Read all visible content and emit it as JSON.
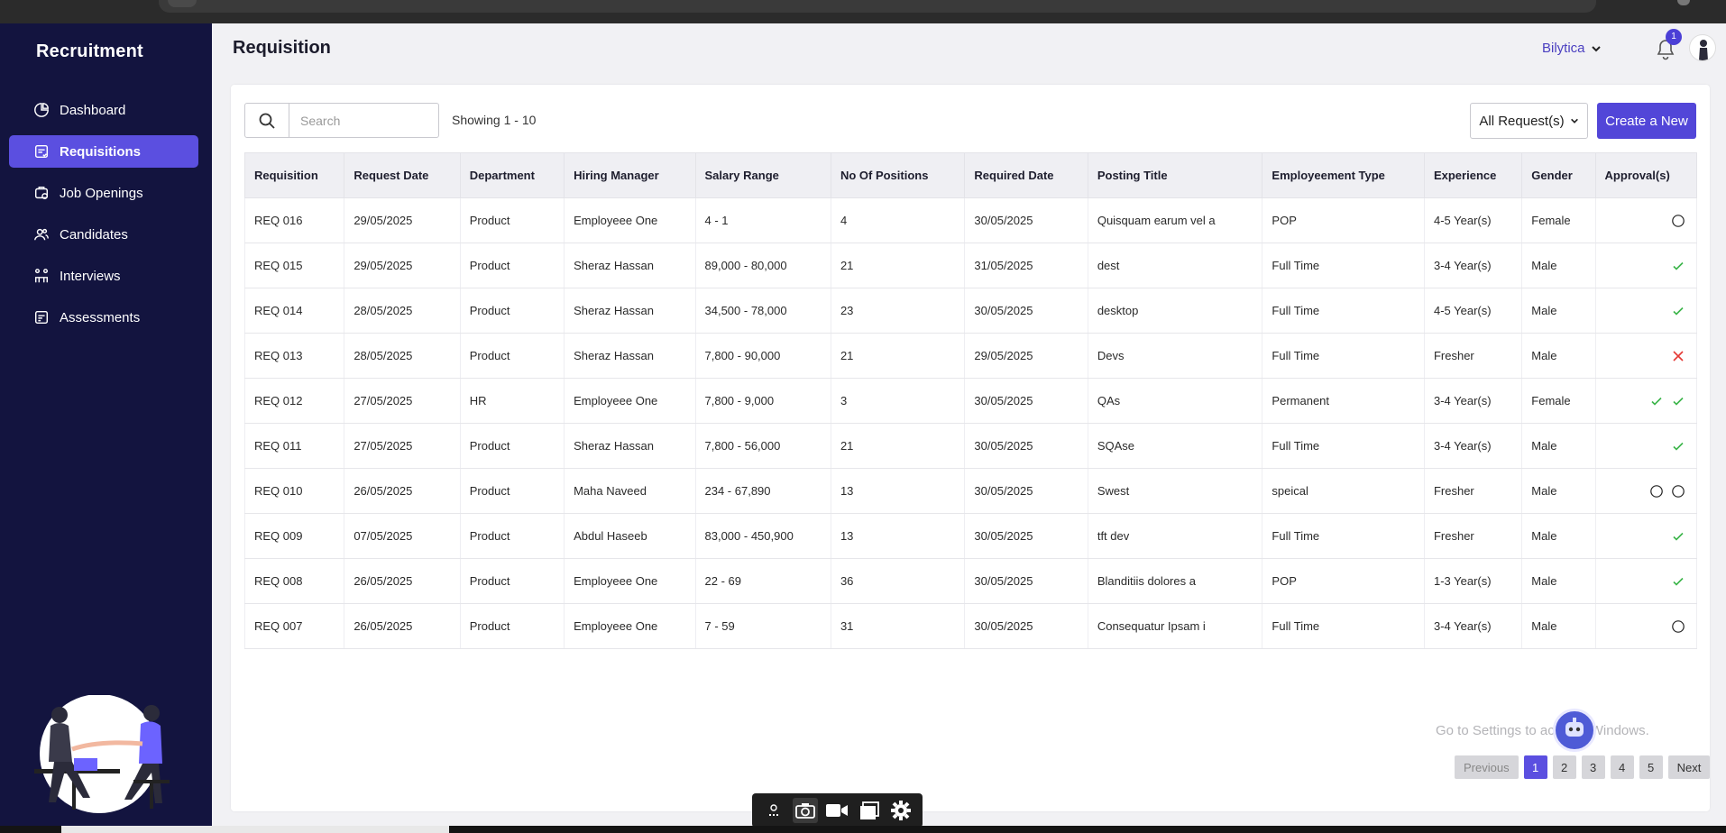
{
  "app": {
    "brand": "Recruitment",
    "page_title": "Requisition"
  },
  "sidebar": {
    "items": [
      {
        "label": "Dashboard",
        "icon": "dashboard-icon",
        "active": false
      },
      {
        "label": "Requisitions",
        "icon": "requisitions-icon",
        "active": true
      },
      {
        "label": "Job Openings",
        "icon": "job-openings-icon",
        "active": false
      },
      {
        "label": "Candidates",
        "icon": "candidates-icon",
        "active": false
      },
      {
        "label": "Interviews",
        "icon": "interviews-icon",
        "active": false
      },
      {
        "label": "Assessments",
        "icon": "assessments-icon",
        "active": false
      }
    ]
  },
  "header": {
    "org_name": "Bilytica",
    "notification_count": "1"
  },
  "toolbar": {
    "search_placeholder": "Search",
    "showing": "Showing 1 - 10",
    "filter_value": "All Request(s)",
    "create_label": "Create a New"
  },
  "table": {
    "columns": [
      "Requisition",
      "Request Date",
      "Department",
      "Hiring Manager",
      "Salary Range",
      "No Of Positions",
      "Required Date",
      "Posting Title",
      "Employeement Type",
      "Experience",
      "Gender",
      "Approval(s)"
    ],
    "rows": [
      {
        "cells": [
          "REQ 016",
          "29/05/2025",
          "Product",
          "Employeee One",
          "4 - 1",
          "4",
          "30/05/2025",
          "Quisquam earum vel a",
          "POP",
          "4-5 Year(s)",
          "Female"
        ],
        "approvals": [
          "pending"
        ]
      },
      {
        "cells": [
          "REQ 015",
          "29/05/2025",
          "Product",
          "Sheraz Hassan",
          "89,000 - 80,000",
          "21",
          "31/05/2025",
          "dest",
          "Full Time",
          "3-4 Year(s)",
          "Male"
        ],
        "approvals": [
          "approved"
        ]
      },
      {
        "cells": [
          "REQ 014",
          "28/05/2025",
          "Product",
          "Sheraz Hassan",
          "34,500 - 78,000",
          "23",
          "30/05/2025",
          "desktop",
          "Full Time",
          "4-5 Year(s)",
          "Male"
        ],
        "approvals": [
          "approved"
        ]
      },
      {
        "cells": [
          "REQ 013",
          "28/05/2025",
          "Product",
          "Sheraz Hassan",
          "7,800 - 90,000",
          "21",
          "29/05/2025",
          "Devs",
          "Full Time",
          "Fresher",
          "Male"
        ],
        "approvals": [
          "rejected"
        ]
      },
      {
        "cells": [
          "REQ 012",
          "27/05/2025",
          "HR",
          "Employeee One",
          "7,800 - 9,000",
          "3",
          "30/05/2025",
          "QAs",
          "Permanent",
          "3-4 Year(s)",
          "Female"
        ],
        "approvals": [
          "approved",
          "approved"
        ]
      },
      {
        "cells": [
          "REQ 011",
          "27/05/2025",
          "Product",
          "Sheraz Hassan",
          "7,800 - 56,000",
          "21",
          "30/05/2025",
          "SQAse",
          "Full Time",
          "3-4 Year(s)",
          "Male"
        ],
        "approvals": [
          "approved"
        ]
      },
      {
        "cells": [
          "REQ 010",
          "26/05/2025",
          "Product",
          "Maha Naveed",
          "234 - 67,890",
          "13",
          "30/05/2025",
          "Swest",
          "speical",
          "Fresher",
          "Male"
        ],
        "approvals": [
          "pending",
          "pending"
        ]
      },
      {
        "cells": [
          "REQ 009",
          "07/05/2025",
          "Product",
          "Abdul Haseeb",
          "83,000 - 450,900",
          "13",
          "30/05/2025",
          "tft dev",
          "Full Time",
          "Fresher",
          "Male"
        ],
        "approvals": [
          "approved"
        ]
      },
      {
        "cells": [
          "REQ 008",
          "26/05/2025",
          "Product",
          "Employeee One",
          "22 - 69",
          "36",
          "30/05/2025",
          "Blanditiis dolores a",
          "POP",
          "1-3 Year(s)",
          "Male"
        ],
        "approvals": [
          "approved"
        ]
      },
      {
        "cells": [
          "REQ 007",
          "26/05/2025",
          "Product",
          "Employeee One",
          "7 - 59",
          "31",
          "30/05/2025",
          "Consequatur Ipsam i",
          "Full Time",
          "3-4 Year(s)",
          "Male"
        ],
        "approvals": [
          "pending"
        ]
      }
    ]
  },
  "pagination": {
    "previous": "Previous",
    "pages": [
      "1",
      "2",
      "3",
      "4",
      "5"
    ],
    "current": "1",
    "next": "Next"
  },
  "watermark": "Go to Settings to activate Windows.",
  "colors": {
    "sidebar_bg": "#13143f",
    "accent": "#5246d8",
    "approved": "#3bb54a",
    "rejected": "#e53935"
  }
}
